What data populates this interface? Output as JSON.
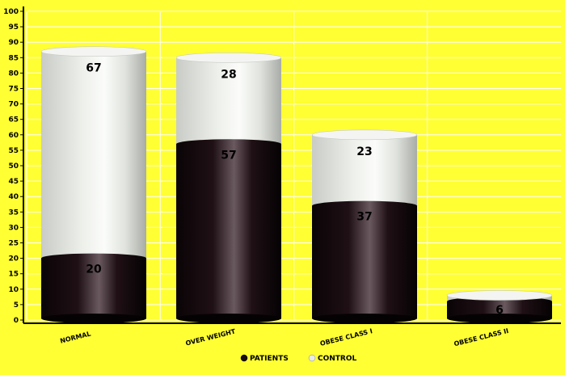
{
  "chart_data": {
    "type": "bar",
    "stacked": true,
    "style": "3d-cylinder",
    "categories": [
      "NORMAL",
      "OVER WEIGHT",
      "OBESE CLASS I",
      "OBESE CLASS II"
    ],
    "series": [
      {
        "name": "PATIENTS",
        "values": [
          20,
          57,
          37,
          6
        ],
        "color": "#1a0c10"
      },
      {
        "name": "CONTROL",
        "values": [
          67,
          28,
          23,
          2
        ],
        "color": "#e8ebe6"
      }
    ],
    "data_labels": [
      {
        "series": "PATIENTS",
        "labels": [
          "20",
          "57",
          "37",
          "6"
        ]
      },
      {
        "series": "CONTROL",
        "labels": [
          "67",
          "28",
          "23",
          ""
        ]
      }
    ],
    "ylim": [
      0,
      100
    ],
    "yticks": [
      "0",
      "5",
      "10",
      "15",
      "20",
      "25",
      "30",
      "35",
      "40",
      "45",
      "50",
      "55",
      "60",
      "65",
      "70",
      "75",
      "80",
      "85",
      "90",
      "95",
      "100"
    ],
    "grid": true,
    "legend": "bottom",
    "background_color": "#ffff33",
    "title": "",
    "xlabel": "",
    "ylabel": ""
  }
}
